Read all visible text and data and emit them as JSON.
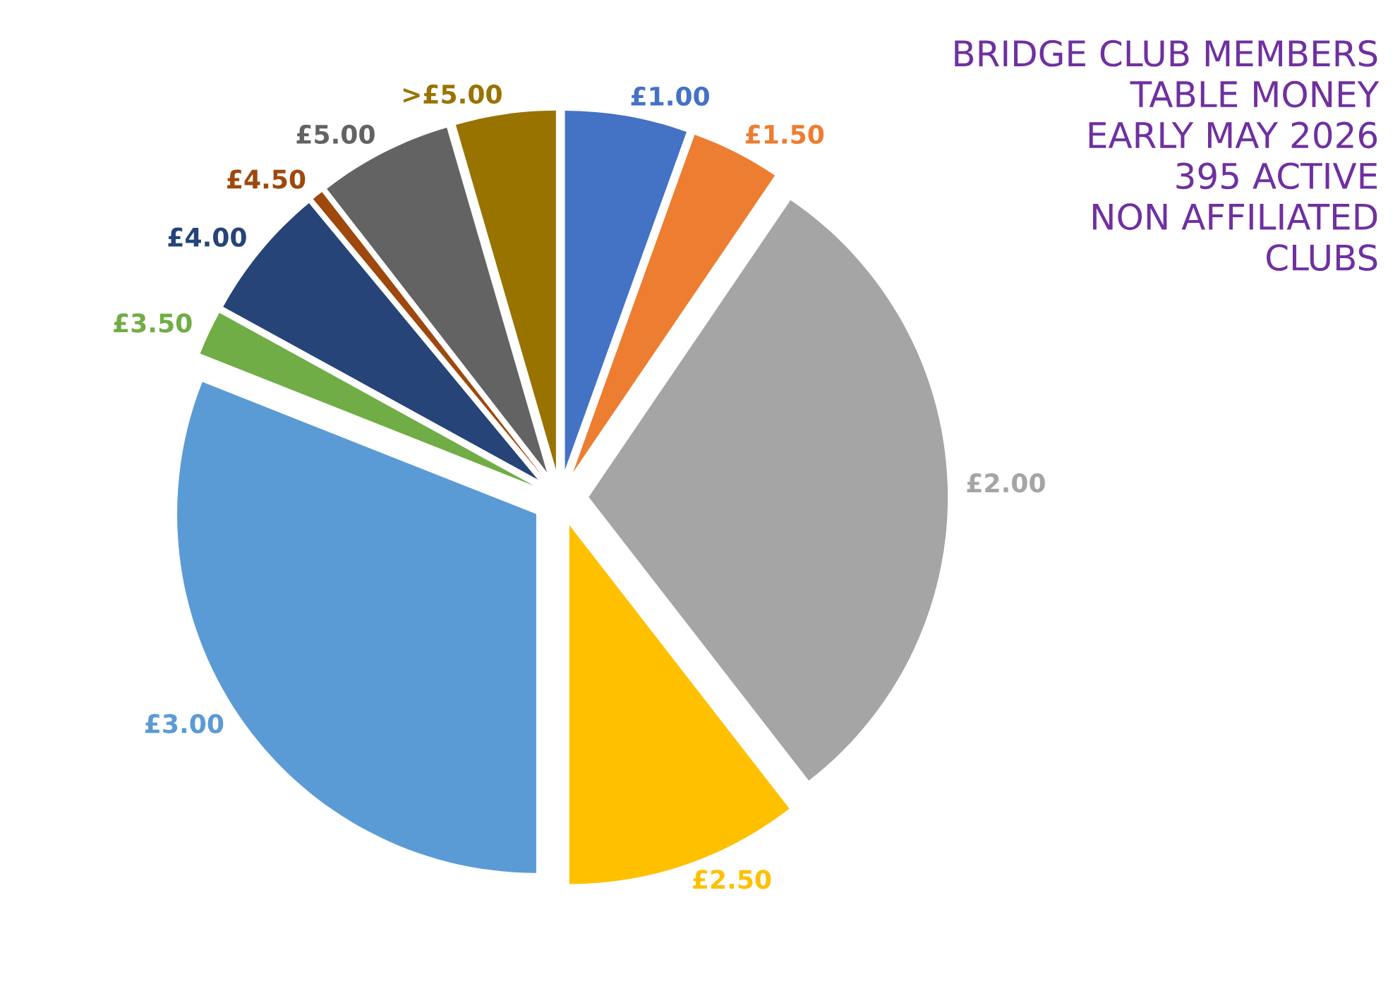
{
  "chart_data": {
    "type": "pie",
    "title": "BRIDGE CLUB MEMBERS\nTABLE MONEY\nEARLY MAY 2026\n395 ACTIVE\nNON AFFILIATED\nCLUBS",
    "categories": [
      "£1.00",
      "£1.50",
      "£2.00",
      "£2.50",
      "£3.00",
      "£3.50",
      "£4.00",
      "£4.50",
      "£5.00",
      ">£5.00"
    ],
    "values": [
      5.5,
      4,
      30,
      10.5,
      31,
      2,
      6,
      0.5,
      6,
      4.5
    ],
    "colors": [
      "#4472c4",
      "#ed7d31",
      "#a5a5a5",
      "#ffc000",
      "#5b9bd5",
      "#70ad47",
      "#264478",
      "#9e480e",
      "#636363",
      "#997300"
    ],
    "legend": false
  }
}
